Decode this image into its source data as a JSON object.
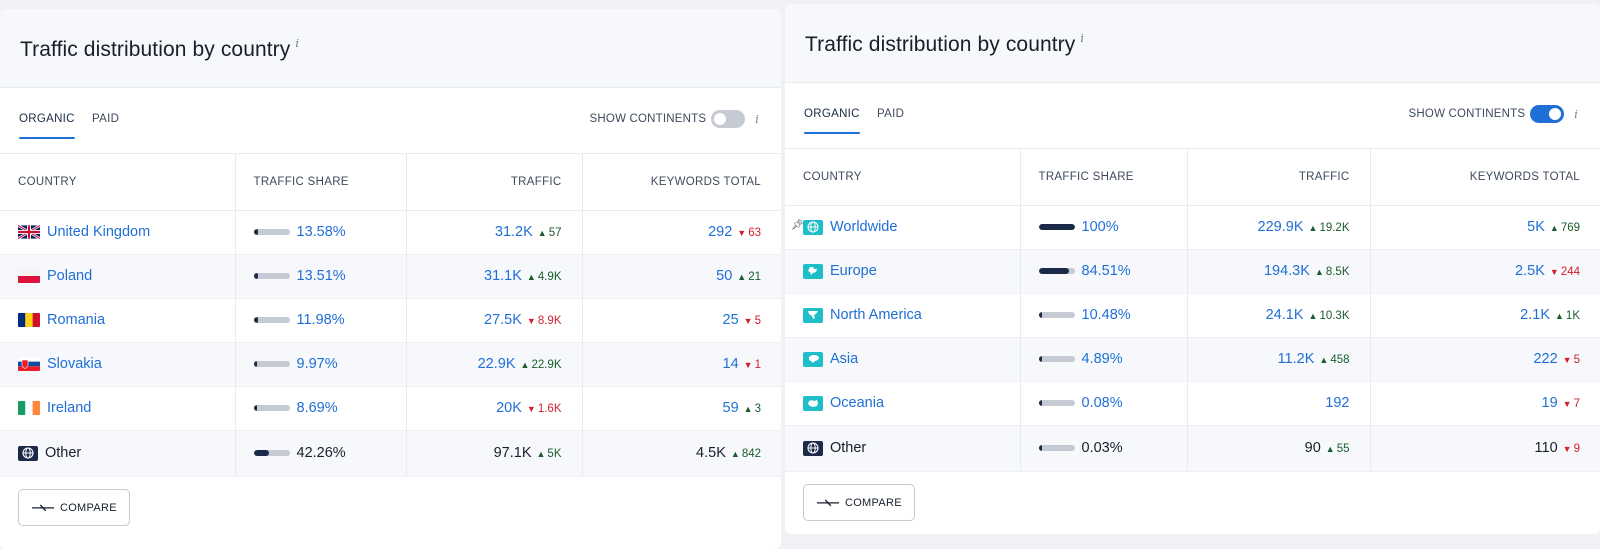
{
  "left": {
    "title": "Traffic distribution by country",
    "info_glyph": "i",
    "tabs": [
      "ORGANIC",
      "PAID"
    ],
    "show_continents_label": "SHOW CONTINENTS",
    "show_continents_on": false,
    "columns": [
      "COUNTRY",
      "TRAFFIC SHARE",
      "TRAFFIC",
      "KEYWORDS TOTAL"
    ],
    "rows": [
      {
        "country": "United Kingdom",
        "flag": "uk-flag",
        "share": "13.58%",
        "share_pct": 13.58,
        "traffic": "31.2K",
        "traffic_delta": "57",
        "traffic_dir": "up",
        "keywords": "292",
        "keywords_delta": "63",
        "keywords_dir": "down",
        "link": true
      },
      {
        "country": "Poland",
        "flag": "poland-flag",
        "share": "13.51%",
        "share_pct": 13.51,
        "traffic": "31.1K",
        "traffic_delta": "4.9K",
        "traffic_dir": "up",
        "keywords": "50",
        "keywords_delta": "21",
        "keywords_dir": "up",
        "link": true
      },
      {
        "country": "Romania",
        "flag": "romania-flag",
        "share": "11.98%",
        "share_pct": 11.98,
        "traffic": "27.5K",
        "traffic_delta": "8.9K",
        "traffic_dir": "down",
        "keywords": "25",
        "keywords_delta": "5",
        "keywords_dir": "down",
        "link": true
      },
      {
        "country": "Slovakia",
        "flag": "slovakia-flag",
        "share": "9.97%",
        "share_pct": 9.97,
        "traffic": "22.9K",
        "traffic_delta": "22.9K",
        "traffic_dir": "up",
        "keywords": "14",
        "keywords_delta": "1",
        "keywords_dir": "down",
        "link": true
      },
      {
        "country": "Ireland",
        "flag": "ireland-flag",
        "share": "8.69%",
        "share_pct": 8.69,
        "traffic": "20K",
        "traffic_delta": "1.6K",
        "traffic_dir": "down",
        "keywords": "59",
        "keywords_delta": "3",
        "keywords_dir": "up",
        "link": true
      },
      {
        "country": "Other",
        "flag": "globe-icon",
        "share": "42.26%",
        "share_pct": 42.26,
        "traffic": "97.1K",
        "traffic_delta": "5K",
        "traffic_dir": "up",
        "keywords": "4.5K",
        "keywords_delta": "842",
        "keywords_dir": "up",
        "link": false
      }
    ],
    "compare_label": "COMPARE"
  },
  "right": {
    "title": "Traffic distribution by country",
    "info_glyph": "i",
    "tabs": [
      "ORGANIC",
      "PAID"
    ],
    "show_continents_label": "SHOW CONTINENTS",
    "show_continents_on": true,
    "columns": [
      "COUNTRY",
      "TRAFFIC SHARE",
      "TRAFFIC",
      "KEYWORDS TOTAL"
    ],
    "rows": [
      {
        "country": "Worldwide",
        "icon": "worldwide-icon",
        "pinned": true,
        "share": "100%",
        "share_pct": 100,
        "traffic": "229.9K",
        "traffic_delta": "19.2K",
        "traffic_dir": "up",
        "keywords": "5K",
        "keywords_delta": "769",
        "keywords_dir": "up",
        "link": true
      },
      {
        "country": "Europe",
        "icon": "europe-icon",
        "share": "84.51%",
        "share_pct": 84.51,
        "traffic": "194.3K",
        "traffic_delta": "8.5K",
        "traffic_dir": "up",
        "keywords": "2.5K",
        "keywords_delta": "244",
        "keywords_dir": "down",
        "link": true
      },
      {
        "country": "North America",
        "icon": "north-america-icon",
        "share": "10.48%",
        "share_pct": 10.48,
        "traffic": "24.1K",
        "traffic_delta": "10.3K",
        "traffic_dir": "up",
        "keywords": "2.1K",
        "keywords_delta": "1K",
        "keywords_dir": "up",
        "link": true
      },
      {
        "country": "Asia",
        "icon": "asia-icon",
        "share": "4.89%",
        "share_pct": 4.89,
        "traffic": "11.2K",
        "traffic_delta": "458",
        "traffic_dir": "up",
        "keywords": "222",
        "keywords_delta": "5",
        "keywords_dir": "down",
        "link": true
      },
      {
        "country": "Oceania",
        "icon": "oceania-icon",
        "share": "0.08%",
        "share_pct": 0.08,
        "traffic": "192",
        "traffic_delta": "",
        "traffic_dir": "",
        "keywords": "19",
        "keywords_delta": "7",
        "keywords_dir": "down",
        "link": true
      },
      {
        "country": "Other",
        "icon": "globe-icon",
        "share": "0.03%",
        "share_pct": 0.03,
        "traffic": "90",
        "traffic_delta": "55",
        "traffic_dir": "up",
        "keywords": "110",
        "keywords_delta": "9",
        "keywords_dir": "down",
        "link": false
      }
    ],
    "compare_label": "COMPARE"
  },
  "colors": {
    "link": "#1f6fd6",
    "up": "#1a5c2c",
    "down": "#d1202f",
    "bar_fill": "#1c2a4a",
    "bar_track": "#c5cad3",
    "continent_icon": "#1dbdc9"
  }
}
